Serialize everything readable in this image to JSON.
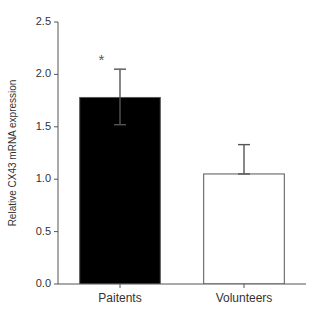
{
  "chart_data": {
    "type": "bar",
    "categories": [
      "Paitents",
      "Volunteers"
    ],
    "values": [
      1.78,
      1.05
    ],
    "errors_upper": [
      0.27,
      0.28
    ],
    "errors_lower": [
      0.26,
      0.0
    ],
    "colors": [
      "#000000",
      "#ffffff"
    ],
    "ylabel": "Relative CX43 mRNA expression",
    "ylim": [
      0.0,
      2.5
    ],
    "yticks": [
      {
        "value": 0.0,
        "label": "0.0"
      },
      0.5,
      {
        "value": 1.0,
        "label": "1.0"
      },
      1.5,
      {
        "value": 2.0,
        "label": "2.0"
      },
      2.5
    ],
    "annotations": [
      {
        "text": "*",
        "category": "Paitents"
      }
    ]
  }
}
